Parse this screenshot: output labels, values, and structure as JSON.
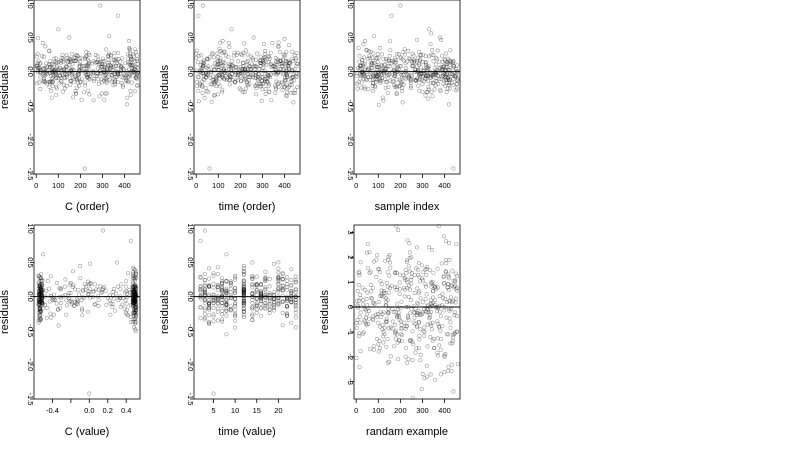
{
  "chart_data": [
    {
      "type": "scatter",
      "xlabel": "C (order)",
      "ylabel": "residuals",
      "xlim": [
        -10,
        470
      ],
      "ylim": [
        -1.5,
        1.05
      ],
      "xticks": [
        0,
        100,
        200,
        300,
        400
      ],
      "xtick_labels": [
        "0",
        "100",
        "200",
        "300",
        "400"
      ],
      "yticks": [
        -1.5,
        -1.0,
        -0.5,
        0.0,
        0.5,
        1.0
      ],
      "ytick_labels": [
        "-1.5",
        "-1.0",
        "-0.5",
        "0.0",
        "0.5",
        "1.0"
      ],
      "hline": 0,
      "marker": "open-circle",
      "n_points": 450,
      "points": [
        [
          220,
          -1.42
        ],
        [
          290,
          0.97
        ],
        [
          370,
          0.82
        ],
        [
          100,
          0.62
        ],
        [
          30,
          0.42
        ],
        [
          330,
          0.52
        ],
        [
          150,
          0.5
        ],
        [
          420,
          0.45
        ],
        [
          70,
          -0.38
        ],
        [
          180,
          -0.32
        ],
        [
          260,
          -0.42
        ],
        [
          410,
          -0.48
        ],
        [
          10,
          0.05
        ],
        [
          60,
          0.1
        ],
        [
          120,
          -0.05
        ],
        [
          200,
          0.2
        ],
        [
          240,
          -0.1
        ],
        [
          300,
          0.15
        ],
        [
          350,
          -0.2
        ],
        [
          440,
          0.1
        ]
      ]
    },
    {
      "type": "scatter",
      "xlabel": "time (order)",
      "ylabel": "residuals",
      "xlim": [
        -10,
        470
      ],
      "ylim": [
        -1.5,
        1.05
      ],
      "xticks": [
        0,
        100,
        200,
        300,
        400
      ],
      "xtick_labels": [
        "0",
        "100",
        "200",
        "300",
        "400"
      ],
      "yticks": [
        -1.5,
        -1.0,
        -0.5,
        0.0,
        0.5,
        1.0
      ],
      "ytick_labels": [
        "-1.5",
        "-1.0",
        "-0.5",
        "0.0",
        "0.5",
        "1.0"
      ],
      "hline": 0,
      "marker": "open-circle",
      "n_points": 450,
      "points": [
        [
          60,
          -1.42
        ],
        [
          30,
          0.97
        ],
        [
          10,
          0.82
        ],
        [
          160,
          0.62
        ],
        [
          260,
          0.5
        ],
        [
          400,
          0.48
        ],
        [
          120,
          0.45
        ],
        [
          340,
          -0.42
        ],
        [
          80,
          -0.35
        ],
        [
          220,
          -0.3
        ],
        [
          440,
          -0.45
        ],
        [
          20,
          0.1
        ],
        [
          100,
          -0.05
        ],
        [
          190,
          0.15
        ],
        [
          280,
          -0.1
        ],
        [
          360,
          0.2
        ],
        [
          420,
          0.05
        ]
      ]
    },
    {
      "type": "scatter",
      "xlabel": "sample index",
      "ylabel": "residuals",
      "xlim": [
        -10,
        470
      ],
      "ylim": [
        -1.5,
        1.05
      ],
      "xticks": [
        0,
        100,
        200,
        300,
        400
      ],
      "xtick_labels": [
        "0",
        "100",
        "200",
        "300",
        "400"
      ],
      "yticks": [
        -1.5,
        -1.0,
        -0.5,
        0.0,
        0.5,
        1.0
      ],
      "ytick_labels": [
        "-1.5",
        "-1.0",
        "-0.5",
        "0.0",
        "0.5",
        "1.0"
      ],
      "hline": 0,
      "marker": "open-circle",
      "n_points": 450,
      "points": [
        [
          440,
          -1.42
        ],
        [
          200,
          0.97
        ],
        [
          160,
          0.82
        ],
        [
          330,
          0.62
        ],
        [
          80,
          0.52
        ],
        [
          380,
          0.5
        ],
        [
          40,
          0.45
        ],
        [
          210,
          -0.45
        ],
        [
          120,
          -0.38
        ],
        [
          300,
          -0.3
        ],
        [
          420,
          -0.48
        ],
        [
          20,
          0.05
        ],
        [
          90,
          0.1
        ],
        [
          250,
          -0.05
        ],
        [
          350,
          0.15
        ],
        [
          460,
          -0.1
        ]
      ]
    },
    {
      "type": "scatter",
      "xlabel": "C (value)",
      "ylabel": "residuals",
      "xlim": [
        -0.6,
        0.55
      ],
      "ylim": [
        -1.5,
        1.05
      ],
      "xticks": [
        -0.4,
        -0.2,
        0.0,
        0.2,
        0.4
      ],
      "xtick_labels": [
        "-0.4",
        "",
        "0.0",
        "0.2",
        "0.4"
      ],
      "yticks": [
        -1.5,
        -1.0,
        -0.5,
        0.0,
        0.5,
        1.0
      ],
      "ytick_labels": [
        "-1.5",
        "-1.0",
        "-0.5",
        "0.0",
        "0.5",
        "1.0"
      ],
      "hline": 0,
      "marker": "open-circle",
      "n_points": 450,
      "points": [
        [
          0.0,
          -1.42
        ],
        [
          0.15,
          0.97
        ],
        [
          0.45,
          0.82
        ],
        [
          -0.5,
          0.62
        ],
        [
          -0.1,
          0.45
        ],
        [
          0.3,
          0.5
        ],
        [
          -0.55,
          -0.38
        ],
        [
          0.5,
          -0.48
        ],
        [
          -0.5,
          0.1
        ],
        [
          -0.5,
          -0.1
        ],
        [
          0.5,
          0.05
        ],
        [
          0.5,
          -0.2
        ],
        [
          0.1,
          0.1
        ],
        [
          -0.2,
          0.2
        ],
        [
          0.25,
          -0.15
        ]
      ]
    },
    {
      "type": "scatter",
      "xlabel": "time (value)",
      "ylabel": "residuals",
      "xlim": [
        0.5,
        25
      ],
      "ylim": [
        -1.5,
        1.05
      ],
      "xticks": [
        5,
        10,
        15,
        20
      ],
      "xtick_labels": [
        "5",
        "10",
        "15",
        "20"
      ],
      "yticks": [
        -1.5,
        -1.0,
        -0.5,
        0.0,
        0.5,
        1.0
      ],
      "ytick_labels": [
        "-1.5",
        "-1.0",
        "-0.5",
        "0.0",
        "0.5",
        "1.0"
      ],
      "hline": 0,
      "marker": "open-circle",
      "n_points": 450,
      "points": [
        [
          5,
          -1.42
        ],
        [
          3,
          0.97
        ],
        [
          2,
          0.82
        ],
        [
          8,
          0.62
        ],
        [
          14,
          0.5
        ],
        [
          19,
          0.48
        ],
        [
          12,
          0.45
        ],
        [
          21,
          -0.42
        ],
        [
          6,
          -0.35
        ],
        [
          12,
          -0.3
        ],
        [
          24,
          -0.45
        ],
        [
          12,
          0.1
        ],
        [
          12,
          -0.1
        ],
        [
          18,
          0.15
        ],
        [
          23,
          0.05
        ]
      ]
    },
    {
      "type": "scatter",
      "xlabel": "randam example",
      "ylabel": "residuals",
      "xlim": [
        -10,
        470
      ],
      "ylim": [
        -3.7,
        3.3
      ],
      "xticks": [
        0,
        100,
        200,
        300,
        400
      ],
      "xtick_labels": [
        "0",
        "100",
        "200",
        "300",
        "400"
      ],
      "yticks": [
        -3,
        -2,
        -1,
        0,
        1,
        2,
        3
      ],
      "ytick_labels": [
        "-3",
        "-2",
        "-1",
        "0",
        "1",
        "2",
        "3"
      ],
      "hline": 0,
      "marker": "open-circle",
      "n_points": 450,
      "points": [
        [
          190,
          3.1
        ],
        [
          440,
          -3.4
        ],
        [
          320,
          -2.8
        ],
        [
          60,
          2.2
        ],
        [
          330,
          2.4
        ],
        [
          150,
          -2.2
        ],
        [
          250,
          2.0
        ],
        [
          400,
          -2.0
        ],
        [
          20,
          1.8
        ],
        [
          100,
          -1.5
        ],
        [
          280,
          1.5
        ],
        [
          460,
          -2.3
        ]
      ]
    }
  ]
}
